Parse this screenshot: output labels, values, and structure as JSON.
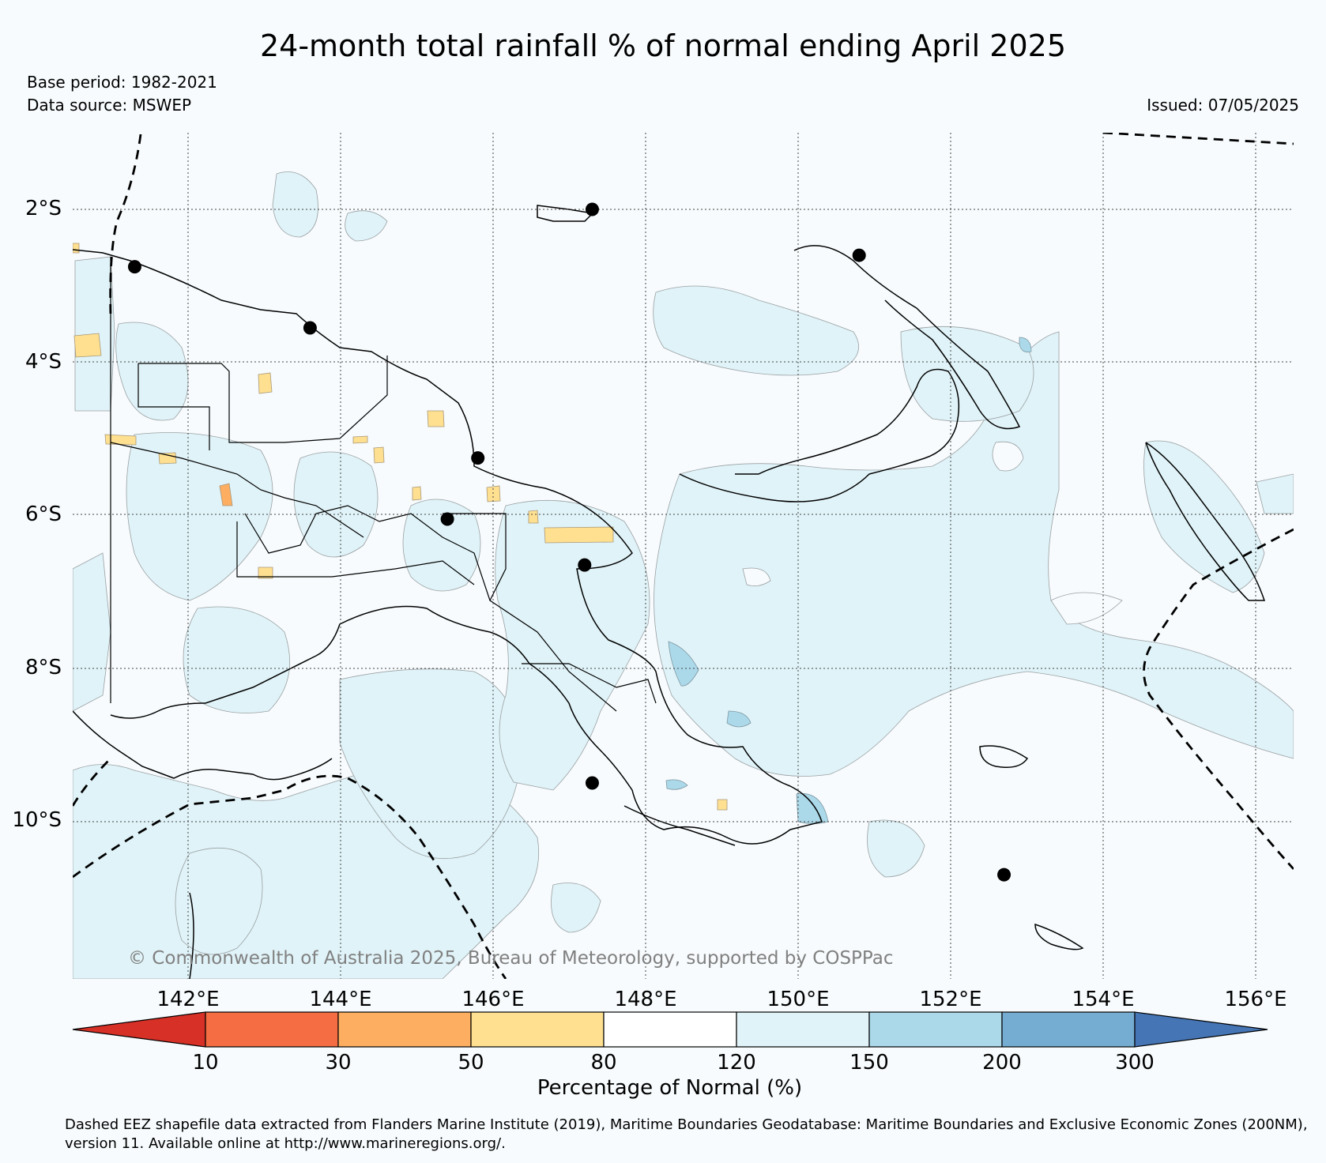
{
  "title": "24-month total rainfall % of normal ending April 2025",
  "base_period": "Base period: 1982-2021",
  "data_source": "Data source: MSWEP",
  "issued": "Issued: 07/05/2025",
  "credit": "© Commonwealth of Australia 2025, Bureau of Meteorology, supported by COSPPac",
  "footnote": "Dashed EEZ shapefile data extracted from Flanders Marine Institute (2019), Maritime Boundaries Geodatabase: Maritime Boundaries and Exclusive Economic Zones (200NM), version 11. Available online at http://www.marineregions.org/.",
  "map": {
    "lat_ticks": [
      {
        "value": -2,
        "label": "2°S"
      },
      {
        "value": -4,
        "label": "4°S"
      },
      {
        "value": -6,
        "label": "6°S"
      },
      {
        "value": -8,
        "label": "8°S"
      },
      {
        "value": -10,
        "label": "10°S"
      }
    ],
    "lon_ticks": [
      {
        "value": 142,
        "label": "142°E"
      },
      {
        "value": 144,
        "label": "144°E"
      },
      {
        "value": 146,
        "label": "146°E"
      },
      {
        "value": 148,
        "label": "148°E"
      },
      {
        "value": 150,
        "label": "150°E"
      },
      {
        "value": 152,
        "label": "152°E"
      },
      {
        "value": 154,
        "label": "154°E"
      },
      {
        "value": 156,
        "label": "156°E"
      }
    ],
    "lon_range": [
      140.5,
      156.5
    ],
    "lat_range": [
      -12.0,
      -1.0
    ],
    "stations": [
      {
        "lon": 141.3,
        "lat": -2.75
      },
      {
        "lon": 143.6,
        "lat": -3.55
      },
      {
        "lon": 145.8,
        "lat": -5.25
      },
      {
        "lon": 145.4,
        "lat": -6.05
      },
      {
        "lon": 147.2,
        "lat": -6.65
      },
      {
        "lon": 147.3,
        "lat": -2.0
      },
      {
        "lon": 150.8,
        "lat": -2.6
      },
      {
        "lon": 147.3,
        "lat": -9.5
      },
      {
        "lon": 152.7,
        "lat": -10.7
      }
    ]
  },
  "colorbar": {
    "title": "Percentage of Normal (%)",
    "boundaries": [
      "10",
      "30",
      "50",
      "80",
      "120",
      "150",
      "200",
      "300"
    ],
    "colors": [
      "#d73027",
      "#f46d43",
      "#fdae61",
      "#fee090",
      "#ffffff",
      "#e0f3f8",
      "#abd9e9",
      "#74add1",
      "#4575b4"
    ]
  }
}
